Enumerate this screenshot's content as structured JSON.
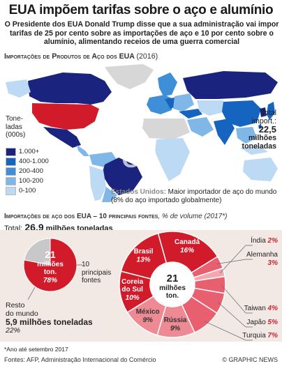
{
  "title": "EUA impõem tarifas sobre o aço e alumínio",
  "intro": "O Presidente dos EUA Donald Trump disse que a sua administração vai impor tarifas de 25 por cento sobre as importações de aço e 10 por cento sobre o alumínio, alimentando receios de uma guerra comercial",
  "map_section": {
    "header": "Importações de Produtos de Aço dos EUA",
    "year": "(2016)",
    "legend_title": "Tone-\nladas\n(000s)",
    "legend": [
      {
        "label": "1.000+",
        "color": "#1a237e"
      },
      {
        "label": "400-1.000",
        "color": "#1565c0"
      },
      {
        "label": "200-400",
        "color": "#3f8fd8"
      },
      {
        "label": "100-200",
        "color": "#7fb8e8"
      },
      {
        "label": "0-100",
        "color": "#bcdaf4"
      }
    ],
    "highlight_color": "#d11a2a",
    "no_data_color": "#d7d7d7",
    "total_label_1": "Total",
    "total_label_2": "import.:",
    "total_value": "22,5",
    "total_unit_1": "milhões",
    "total_unit_2": "toneladas",
    "us_note_bold": "Estados Unidos:",
    "us_note_text": " Maior importador de aço do mundo (8% do aço importado globalmente)"
  },
  "pie_section": {
    "header": "Importações de aço dos EUA – 10 principais fontes",
    "header_unit": ", % de volume (2017*)",
    "total_label": "Total: ",
    "total_value": "26,9",
    "total_unit": " milhões toneladas",
    "left_pie": {
      "center_value": "21",
      "center_unit": "milhões",
      "center_unit2": "ton.",
      "center_pct": "78%",
      "top10_label_1": "10",
      "top10_label_2": "principais",
      "top10_label_3": "fontes",
      "rest_label_1": "Resto",
      "rest_label_2": "do mundo",
      "rest_value": "5,9 milhões toneladas",
      "rest_pct": "22%"
    },
    "donut_center": {
      "value": "21",
      "unit1": "milhões",
      "unit2": "ton."
    }
  },
  "chart_data": [
    {
      "type": "pie",
      "title": "",
      "categories": [
        "10 principais fontes",
        "Resto do mundo"
      ],
      "values": [
        78,
        22
      ],
      "colors": [
        "#d11a2a",
        "#c8c8c8"
      ]
    },
    {
      "type": "pie",
      "title": "",
      "categories": [
        "Brasil",
        "Canadá",
        "Alemanha",
        "Índia",
        "Taiwan",
        "Japão",
        "Turquia",
        "Rússia",
        "México",
        "Coreia do Sul"
      ],
      "values": [
        13,
        16,
        3,
        2,
        4,
        5,
        7,
        9,
        9,
        10
      ],
      "colors": [
        "#d11a2a",
        "#d11a2a",
        "#e86070",
        "#f2a8b0",
        "#e86070",
        "#e86070",
        "#e86070",
        "#ee8a94",
        "#ee8a94",
        "#d11a2a"
      ],
      "labels": [
        "13%",
        "16%",
        "3%",
        "2%",
        "4%",
        "5%",
        "7%",
        "9%",
        "9%",
        "10%"
      ]
    }
  ],
  "footnote": "*Ano até setembro 2017",
  "source": "Fontes: AFP, Administração Internacional do Comércio",
  "brand": "© GRAPHIC NEWS"
}
